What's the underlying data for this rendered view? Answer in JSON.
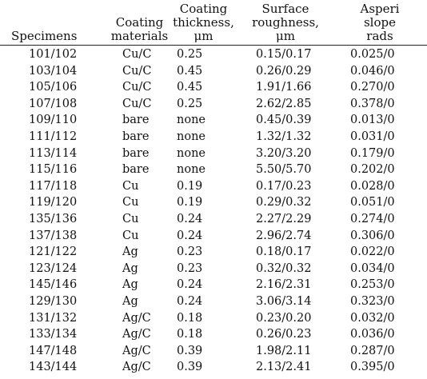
{
  "table": {
    "headers": [
      [
        "Specimens"
      ],
      [
        "Coating",
        "materials"
      ],
      [
        "Coating",
        "thickness,",
        "μm"
      ],
      [
        "Surface",
        "roughness,",
        "μm"
      ],
      [
        "Asperi",
        "slope",
        "rads"
      ]
    ],
    "rows": [
      [
        "101/102",
        "Cu/C",
        "0.25",
        "0.15/0.17",
        "0.025/0"
      ],
      [
        "103/104",
        "Cu/C",
        "0.45",
        "0.26/0.29",
        "0.046/0"
      ],
      [
        "105/106",
        "Cu/C",
        "0.45",
        "1.91/1.66",
        "0.270/0"
      ],
      [
        "107/108",
        "Cu/C",
        "0.25",
        "2.62/2.85",
        "0.378/0"
      ],
      [
        "109/110",
        "bare",
        "none",
        "0.45/0.39",
        "0.013/0"
      ],
      [
        "111/112",
        "bare",
        "none",
        "1.32/1.32",
        "0.031/0"
      ],
      [
        "113/114",
        "bare",
        "none",
        "3.20/3.20",
        "0.179/0"
      ],
      [
        "115/116",
        "bare",
        "none",
        "5.50/5.70",
        "0.202/0"
      ],
      [
        "117/118",
        "Cu",
        "0.19",
        "0.17/0.23",
        "0.028/0"
      ],
      [
        "119/120",
        "Cu",
        "0.19",
        "0.29/0.32",
        "0.051/0"
      ],
      [
        "135/136",
        "Cu",
        "0.24",
        "2.27/2.29",
        "0.274/0"
      ],
      [
        "137/138",
        "Cu",
        "0.24",
        "2.96/2.74",
        "0.306/0"
      ],
      [
        "121/122",
        "Ag",
        "0.23",
        "0.18/0.17",
        "0.022/0"
      ],
      [
        "123/124",
        "Ag",
        "0.23",
        "0.32/0.32",
        "0.034/0"
      ],
      [
        "145/146",
        "Ag",
        "0.24",
        "2.16/2.31",
        "0.253/0"
      ],
      [
        "129/130",
        "Ag",
        "0.24",
        "3.06/3.14",
        "0.323/0"
      ],
      [
        "131/132",
        "Ag/C",
        "0.18",
        "0.23/0.20",
        "0.032/0"
      ],
      [
        "133/134",
        "Ag/C",
        "0.18",
        "0.26/0.23",
        "0.036/0"
      ],
      [
        "147/148",
        "Ag/C",
        "0.39",
        "1.98/2.11",
        "0.287/0"
      ],
      [
        "143/144",
        "Ag/C",
        "0.39",
        "2.13/2.41",
        "0.395/0"
      ]
    ]
  }
}
